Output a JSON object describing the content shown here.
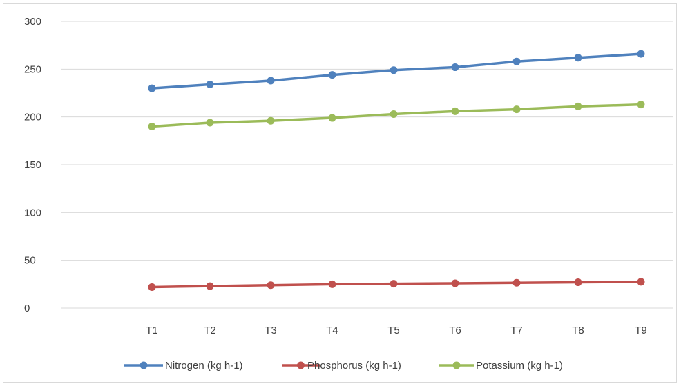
{
  "chart_data": {
    "type": "line",
    "categories": [
      "T1",
      "T2",
      "T3",
      "T4",
      "T5",
      "T6",
      "T7",
      "T8",
      "T9"
    ],
    "series": [
      {
        "name": "Nitrogen (kg h-1)",
        "color": "#4f81bd",
        "values": [
          230,
          234,
          238,
          244,
          249,
          252,
          258,
          262,
          266
        ]
      },
      {
        "name": "Phosphorus (kg h-1)",
        "color": "#c0504d",
        "values": [
          22,
          23,
          24,
          25,
          25.5,
          26,
          26.5,
          27,
          27.5
        ]
      },
      {
        "name": "Potassium (kg h-1)",
        "color": "#9bbb59",
        "values": [
          190,
          194,
          196,
          199,
          203,
          206,
          208,
          211,
          213
        ]
      }
    ],
    "ylim": [
      0,
      300
    ],
    "yticks": [
      "0",
      "50",
      "100",
      "150",
      "200",
      "250",
      "300"
    ],
    "grid": true,
    "legend": "bottom"
  }
}
